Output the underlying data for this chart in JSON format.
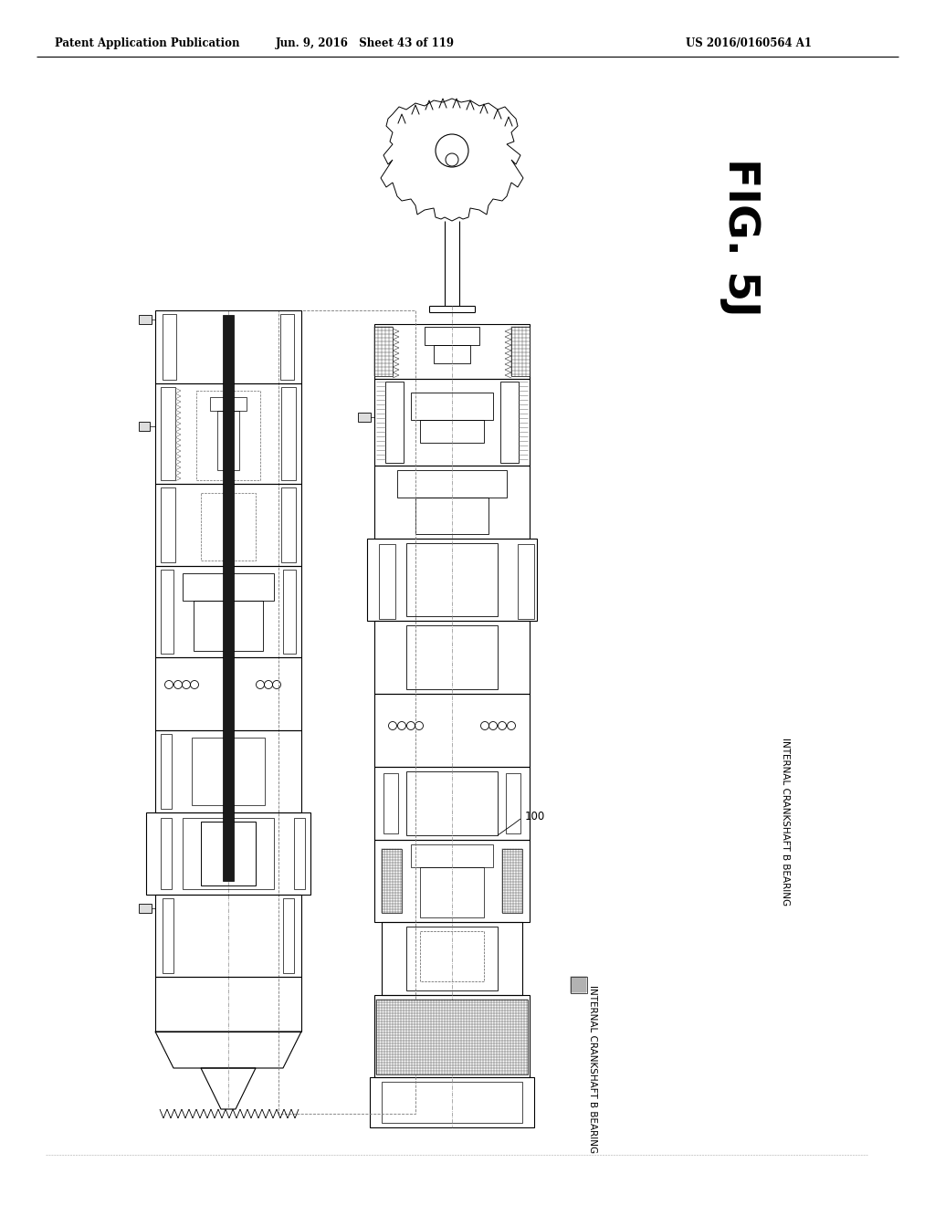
{
  "header_left": "Patent Application Publication",
  "header_mid": "Jun. 9, 2016   Sheet 43 of 119",
  "header_right": "US 2016/0160564 A1",
  "fig_label": "FIG. 5J",
  "part_number": "100",
  "legend_label": "INTERNAL CRANKSHAFT B BEARING",
  "bg_color": "#ffffff",
  "line_color": "#000000"
}
